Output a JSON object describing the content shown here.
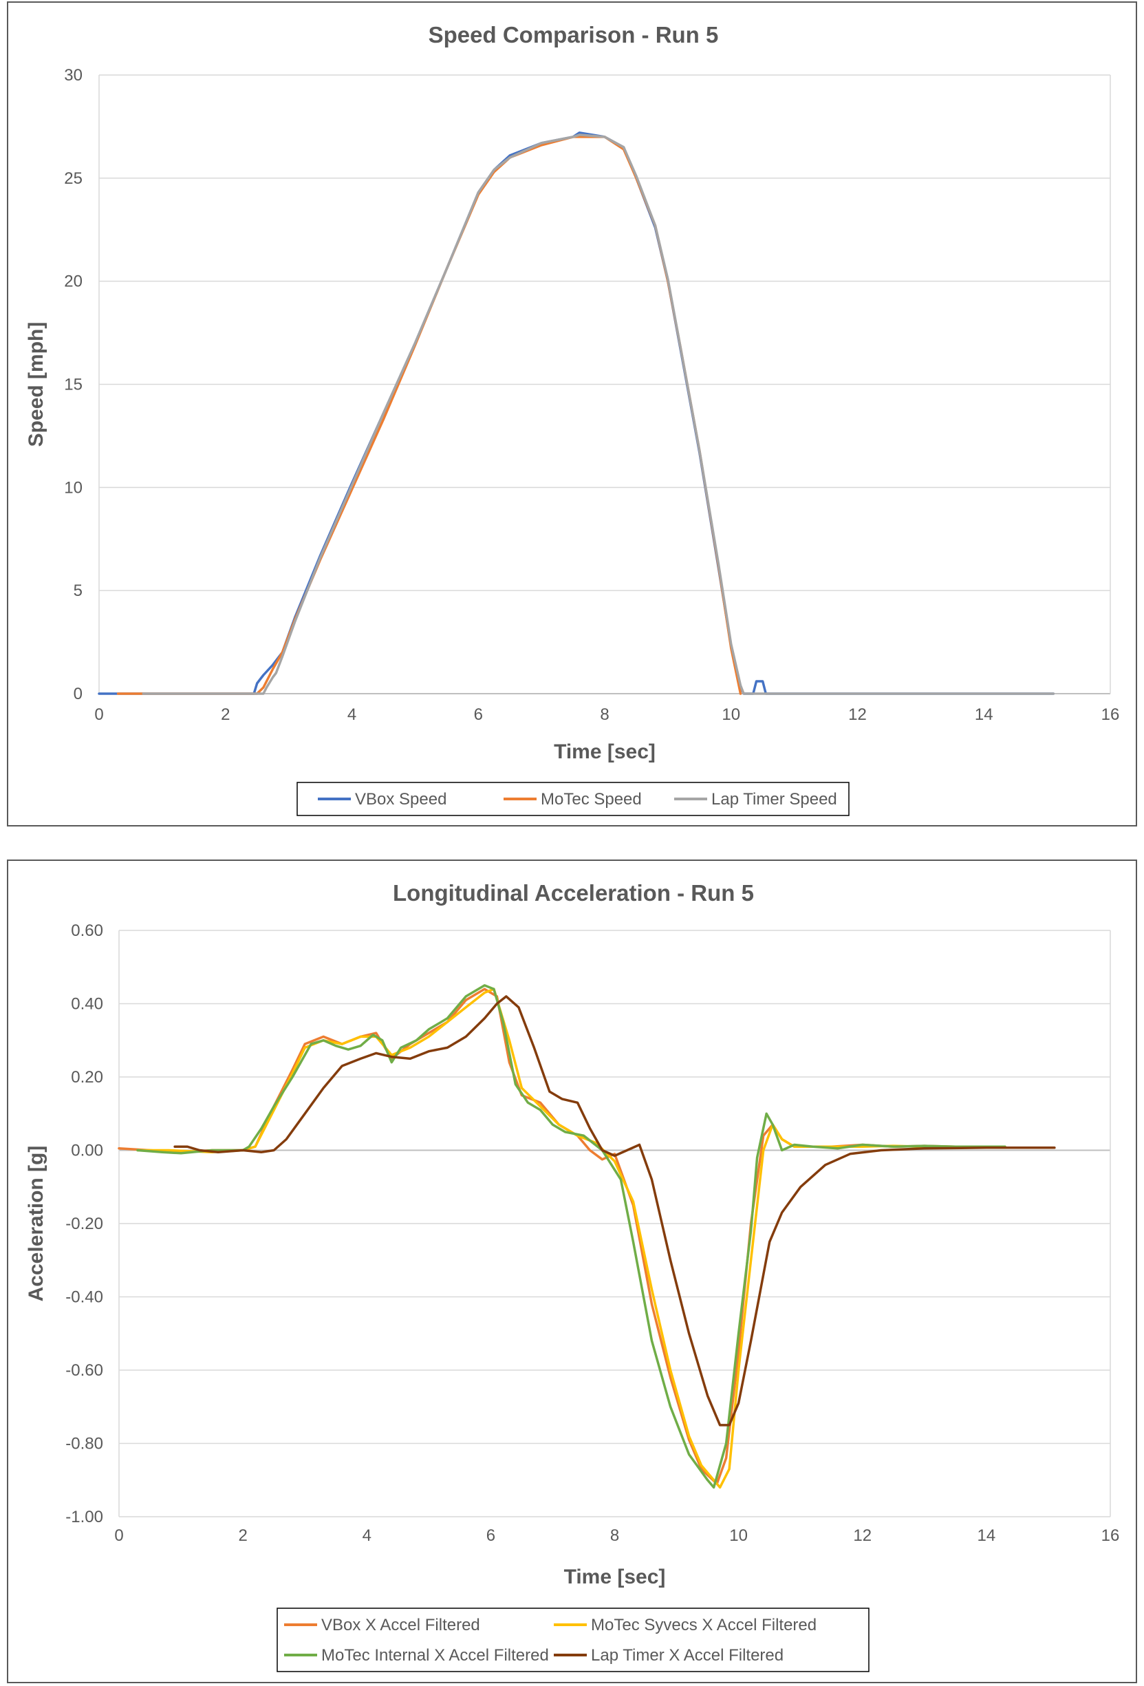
{
  "chart_data": [
    {
      "type": "line",
      "title": "Speed Comparison - Run 5",
      "xlabel": "Time [sec]",
      "ylabel": "Speed [mph]",
      "xlim": [
        0,
        16
      ],
      "ylim": [
        0,
        30
      ],
      "xticks": [
        0,
        2,
        4,
        6,
        8,
        10,
        12,
        14,
        16
      ],
      "yticks": [
        0,
        5,
        10,
        15,
        20,
        25,
        30
      ],
      "ytick_labels": [
        "0",
        "5",
        "10",
        "15",
        "20",
        "25",
        "30"
      ],
      "grid": true,
      "legend_position": "bottom",
      "series": [
        {
          "name": "VBox Speed",
          "color": "#4472C4",
          "x": [
            0,
            1,
            2,
            2.45,
            2.5,
            2.6,
            2.75,
            2.9,
            3.1,
            3.5,
            4,
            4.5,
            5,
            5.5,
            6,
            6.25,
            6.5,
            7,
            7.5,
            7.6,
            8,
            8.3,
            8.5,
            8.8,
            9,
            9.2,
            9.5,
            9.8,
            10,
            10.15,
            10.2,
            10.35,
            10.4,
            10.5,
            10.55,
            10.6,
            11,
            12,
            13,
            14,
            15.1
          ],
          "y": [
            0,
            0,
            0,
            0,
            0.5,
            0.9,
            1.4,
            2.0,
            3.7,
            6.7,
            10.2,
            13.6,
            17.0,
            20.6,
            24.3,
            25.4,
            26.1,
            26.7,
            27.0,
            27.2,
            27.0,
            26.5,
            25.0,
            22.6,
            20.0,
            16.7,
            11.7,
            6.1,
            2.3,
            0.3,
            0,
            0,
            0.6,
            0.6,
            0,
            0,
            0,
            0,
            0,
            0,
            0
          ]
        },
        {
          "name": "MoTec Speed",
          "color": "#ED7D31",
          "x": [
            0.3,
            0.9,
            2.5,
            2.6,
            2.75,
            2.9,
            3.1,
            3.5,
            4,
            4.5,
            5,
            5.5,
            6,
            6.25,
            6.5,
            7,
            7.5,
            8,
            8.3,
            8.5,
            8.8,
            9,
            9.2,
            9.5,
            9.8,
            10,
            10.15
          ],
          "y": [
            0,
            0,
            0,
            0.3,
            1.2,
            2.0,
            3.6,
            6.5,
            9.9,
            13.3,
            16.9,
            20.6,
            24.2,
            25.3,
            26.0,
            26.6,
            27.0,
            27.0,
            26.4,
            25.0,
            22.7,
            20.0,
            16.8,
            11.8,
            6.2,
            2.2,
            0
          ]
        },
        {
          "name": "Lap Timer Speed",
          "color": "#A5A5A5",
          "x": [
            0.7,
            1,
            2,
            2.6,
            2.65,
            2.75,
            2.8,
            2.9,
            3.1,
            3.5,
            4,
            4.5,
            5,
            5.5,
            6,
            6.25,
            6.5,
            7,
            7.5,
            7.6,
            8,
            8.3,
            8.5,
            8.8,
            9,
            9.2,
            9.5,
            9.8,
            10,
            10.15,
            10.2,
            11,
            12,
            13,
            14,
            15.1
          ],
          "y": [
            0,
            0,
            0,
            0,
            0.3,
            0.8,
            1.0,
            1.8,
            3.5,
            6.6,
            10.1,
            13.6,
            17.0,
            20.6,
            24.3,
            25.4,
            26.0,
            26.7,
            27.0,
            27.1,
            27.0,
            26.5,
            25.1,
            22.7,
            20.1,
            16.8,
            11.8,
            6.3,
            2.4,
            0.4,
            0,
            0,
            0,
            0,
            0,
            0
          ]
        }
      ]
    },
    {
      "type": "line",
      "title": "Longitudinal Acceleration - Run 5",
      "xlabel": "Time [sec]",
      "ylabel": "Acceleration [g]",
      "xlim": [
        0,
        16
      ],
      "ylim": [
        -1.0,
        0.6
      ],
      "xticks": [
        0,
        2,
        4,
        6,
        8,
        10,
        12,
        14,
        16
      ],
      "yticks": [
        -1.0,
        -0.8,
        -0.6,
        -0.4,
        -0.2,
        0,
        0.2,
        0.4,
        0.6
      ],
      "ytick_labels": [
        "-1.00",
        "-0.80",
        "-0.60",
        "-0.40",
        "-0.20",
        "0.00",
        "0.20",
        "0.40",
        "0.60"
      ],
      "grid": true,
      "legend_position": "bottom",
      "series": [
        {
          "name": "VBox X Accel Filtered",
          "color": "#ED7D31",
          "x": [
            0,
            0.5,
            1,
            1.5,
            2,
            2.2,
            2.5,
            2.8,
            3,
            3.3,
            3.6,
            3.9,
            4.15,
            4.4,
            4.7,
            5,
            5.3,
            5.6,
            5.9,
            6.1,
            6.3,
            6.5,
            6.8,
            7.1,
            7.4,
            7.6,
            7.8,
            8,
            8.3,
            8.6,
            8.9,
            9.2,
            9.4,
            9.65,
            9.8,
            10,
            10.2,
            10.4,
            10.55,
            10.7,
            10.9,
            11.5,
            12,
            12.5,
            13,
            13.5,
            14.3
          ],
          "y": [
            0.005,
            0.0,
            -0.005,
            0.0,
            0.0,
            0.01,
            0.12,
            0.22,
            0.29,
            0.31,
            0.29,
            0.31,
            0.32,
            0.25,
            0.29,
            0.32,
            0.35,
            0.41,
            0.44,
            0.42,
            0.24,
            0.15,
            0.13,
            0.07,
            0.04,
            0.0,
            -0.025,
            -0.01,
            -0.15,
            -0.42,
            -0.62,
            -0.79,
            -0.87,
            -0.91,
            -0.84,
            -0.55,
            -0.2,
            0.04,
            0.07,
            0.03,
            0.01,
            0.01,
            0.015,
            0.01,
            0.012,
            0.01,
            0.01
          ]
        },
        {
          "name": "MoTec Syvecs X Accel Filtered",
          "color": "#FFC000",
          "x": [
            0.3,
            0.8,
            1.5,
            2,
            2.2,
            2.5,
            2.8,
            3,
            3.3,
            3.6,
            3.9,
            4.15,
            4.4,
            4.7,
            5,
            5.3,
            5.6,
            5.9,
            6.05,
            6.3,
            6.5,
            6.8,
            7.1,
            7.4,
            7.7,
            8,
            8.3,
            8.6,
            8.9,
            9.2,
            9.4,
            9.7,
            9.85,
            10,
            10.2,
            10.4,
            10.55,
            10.7,
            10.9,
            11.5,
            12,
            12.5,
            13,
            13.5,
            14.3
          ],
          "y": [
            0.0,
            0.0,
            -0.005,
            0.0,
            0.01,
            0.11,
            0.21,
            0.28,
            0.3,
            0.29,
            0.31,
            0.31,
            0.26,
            0.28,
            0.31,
            0.35,
            0.39,
            0.43,
            0.44,
            0.3,
            0.17,
            0.12,
            0.07,
            0.04,
            0.02,
            -0.03,
            -0.14,
            -0.38,
            -0.6,
            -0.78,
            -0.86,
            -0.92,
            -0.87,
            -0.6,
            -0.3,
            0.0,
            0.07,
            0.03,
            0.01,
            0.01,
            0.01,
            0.012,
            0.01,
            0.01,
            0.01
          ]
        },
        {
          "name": "MoTec Internal X Accel Filtered",
          "color": "#70AD47",
          "x": [
            0.3,
            0.7,
            1,
            1.5,
            2,
            2.1,
            2.3,
            2.5,
            2.8,
            3.1,
            3.3,
            3.5,
            3.7,
            3.9,
            4.1,
            4.25,
            4.4,
            4.55,
            4.8,
            5,
            5.3,
            5.6,
            5.9,
            6.05,
            6.2,
            6.4,
            6.6,
            6.8,
            7,
            7.2,
            7.5,
            7.8,
            8.1,
            8.3,
            8.6,
            8.9,
            9.2,
            9.5,
            9.6,
            9.8,
            10,
            10.2,
            10.3,
            10.45,
            10.55,
            10.7,
            10.9,
            11.2,
            11.6,
            12,
            12.5,
            13,
            13.5,
            14.3
          ],
          "y": [
            0.0,
            -0.005,
            -0.008,
            0.0,
            0.0,
            0.01,
            0.06,
            0.12,
            0.2,
            0.29,
            0.3,
            0.285,
            0.275,
            0.285,
            0.315,
            0.3,
            0.24,
            0.28,
            0.3,
            0.33,
            0.36,
            0.42,
            0.45,
            0.44,
            0.35,
            0.18,
            0.13,
            0.11,
            0.07,
            0.05,
            0.04,
            0.0,
            -0.08,
            -0.25,
            -0.52,
            -0.7,
            -0.83,
            -0.9,
            -0.92,
            -0.8,
            -0.5,
            -0.22,
            -0.02,
            0.1,
            0.07,
            0.0,
            0.015,
            0.01,
            0.005,
            0.015,
            0.01,
            0.012,
            0.01,
            0.01
          ]
        },
        {
          "name": "Lap Timer X Accel Filtered",
          "color": "#843C0C",
          "x": [
            0.9,
            1.1,
            1.3,
            1.6,
            2,
            2.3,
            2.5,
            2.7,
            3,
            3.3,
            3.6,
            3.9,
            4.15,
            4.4,
            4.7,
            5,
            5.3,
            5.6,
            5.9,
            6.1,
            6.25,
            6.45,
            6.7,
            6.95,
            7.15,
            7.4,
            7.6,
            7.8,
            8,
            8.2,
            8.4,
            8.6,
            8.9,
            9.2,
            9.5,
            9.7,
            9.85,
            10,
            10.2,
            10.5,
            10.7,
            11,
            11.4,
            11.8,
            12.3,
            13,
            14,
            15.1
          ],
          "y": [
            0.01,
            0.01,
            0.0,
            -0.005,
            0.0,
            -0.005,
            0.0,
            0.03,
            0.1,
            0.17,
            0.23,
            0.25,
            0.265,
            0.255,
            0.25,
            0.27,
            0.28,
            0.31,
            0.36,
            0.4,
            0.42,
            0.39,
            0.28,
            0.16,
            0.14,
            0.13,
            0.06,
            0.0,
            -0.015,
            0.0,
            0.015,
            -0.08,
            -0.3,
            -0.5,
            -0.67,
            -0.75,
            -0.75,
            -0.69,
            -0.52,
            -0.25,
            -0.17,
            -0.1,
            -0.04,
            -0.01,
            0.0,
            0.005,
            0.007,
            0.007
          ]
        }
      ]
    }
  ]
}
